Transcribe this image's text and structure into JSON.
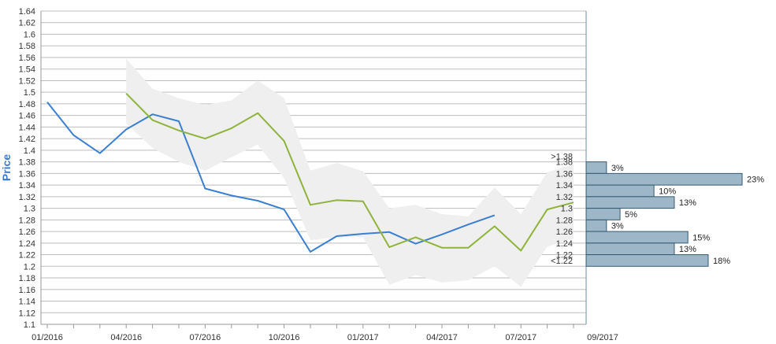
{
  "colors": {
    "blue_series": "#3a7fd0",
    "green_series": "#8fb43c",
    "band": "#efefef",
    "grid": "#bdbdbd",
    "bar_fill": "#9db7c8",
    "bar_stroke": "#345a70"
  },
  "chart_data": {
    "type": "line",
    "xlabel": "",
    "ylabel": "Price",
    "ylim": [
      1.1,
      1.64
    ],
    "y_ticks": [
      "1.64",
      "1.62",
      "1.6",
      "1.58",
      "1.56",
      "1.54",
      "1.52",
      "1.5",
      "1.48",
      "1.46",
      "1.44",
      "1.42",
      "1.4",
      "1.38",
      "1.36",
      "1.34",
      "1.32",
      "1.3",
      "1.28",
      "1.26",
      "1.24",
      "1.22",
      "1.2",
      "1.18",
      "1.16",
      "1.14",
      "1.12",
      "1.1"
    ],
    "x_tick_labels": [
      "01/2016",
      "04/2016",
      "07/2016",
      "10/2016",
      "01/2017",
      "04/2017",
      "07/2017",
      "09/2017"
    ],
    "grid": true,
    "series": [
      {
        "values": [
          {
            "x": "2016-01",
            "y": 1.483
          },
          {
            "x": "2016-02",
            "y": 1.426
          },
          {
            "x": "2016-03",
            "y": 1.395
          },
          {
            "x": "2016-04",
            "y": 1.436
          },
          {
            "x": "2016-05",
            "y": 1.462
          },
          {
            "x": "2016-06",
            "y": 1.45
          },
          {
            "x": "2016-07",
            "y": 1.334
          },
          {
            "x": "2016-08",
            "y": 1.322
          },
          {
            "x": "2016-09",
            "y": 1.313
          },
          {
            "x": "2016-10",
            "y": 1.298
          },
          {
            "x": "2016-11",
            "y": 1.225
          },
          {
            "x": "2016-12",
            "y": 1.252
          },
          {
            "x": "2017-01",
            "y": 1.256
          },
          {
            "x": "2017-02",
            "y": 1.259
          },
          {
            "x": "2017-03",
            "y": 1.239
          },
          {
            "x": "2017-04",
            "y": 1.255
          },
          {
            "x": "2017-05",
            "y": 1.272
          },
          {
            "x": "2017-06",
            "y": 1.288
          }
        ]
      },
      {
        "values": [
          {
            "x": "2016-04",
            "y": 1.498
          },
          {
            "x": "2016-05",
            "y": 1.452
          },
          {
            "x": "2016-06",
            "y": 1.434
          },
          {
            "x": "2016-07",
            "y": 1.42
          },
          {
            "x": "2016-08",
            "y": 1.438
          },
          {
            "x": "2016-09",
            "y": 1.464
          },
          {
            "x": "2016-10",
            "y": 1.416
          },
          {
            "x": "2016-11",
            "y": 1.306
          },
          {
            "x": "2016-12",
            "y": 1.314
          },
          {
            "x": "2017-01",
            "y": 1.312
          },
          {
            "x": "2017-02",
            "y": 1.233
          },
          {
            "x": "2017-03",
            "y": 1.25
          },
          {
            "x": "2017-04",
            "y": 1.232
          },
          {
            "x": "2017-05",
            "y": 1.232
          },
          {
            "x": "2017-06",
            "y": 1.269
          },
          {
            "x": "2017-07",
            "y": 1.227
          },
          {
            "x": "2017-08",
            "y": 1.298
          },
          {
            "x": "2017-09",
            "y": 1.31
          }
        ]
      }
    ],
    "band": [
      {
        "x": "2016-04",
        "low": 1.446,
        "high": 1.558
      },
      {
        "x": "2016-05",
        "low": 1.404,
        "high": 1.506
      },
      {
        "x": "2016-06",
        "low": 1.38,
        "high": 1.49
      },
      {
        "x": "2016-07",
        "low": 1.365,
        "high": 1.478
      },
      {
        "x": "2016-08",
        "low": 1.388,
        "high": 1.486
      },
      {
        "x": "2016-09",
        "low": 1.41,
        "high": 1.52
      },
      {
        "x": "2016-10",
        "low": 1.352,
        "high": 1.49
      },
      {
        "x": "2016-11",
        "low": 1.245,
        "high": 1.365
      },
      {
        "x": "2016-12",
        "low": 1.25,
        "high": 1.378
      },
      {
        "x": "2017-01",
        "low": 1.25,
        "high": 1.364
      },
      {
        "x": "2017-02",
        "low": 1.168,
        "high": 1.3
      },
      {
        "x": "2017-03",
        "low": 1.185,
        "high": 1.306
      },
      {
        "x": "2017-04",
        "low": 1.172,
        "high": 1.29
      },
      {
        "x": "2017-05",
        "low": 1.176,
        "high": 1.286
      },
      {
        "x": "2017-06",
        "low": 1.2,
        "high": 1.336
      },
      {
        "x": "2017-07",
        "low": 1.165,
        "high": 1.29
      },
      {
        "x": "2017-08",
        "low": 1.234,
        "high": 1.362
      },
      {
        "x": "2017-09",
        "low": 1.248,
        "high": 1.376
      }
    ],
    "distribution": {
      "labels": [
        ">1.38",
        "1.38",
        "1.36",
        "1.34",
        "1.32",
        "1.3",
        "1.28",
        "1.26",
        "1.24",
        "1.22",
        "<1.22"
      ],
      "bars": [
        {
          "y": 1.37,
          "pct": 3,
          "label": "3%"
        },
        {
          "y": 1.35,
          "pct": 23,
          "label": "23%"
        },
        {
          "y": 1.33,
          "pct": 10,
          "label": "10%"
        },
        {
          "y": 1.31,
          "pct": 13,
          "label": "13%"
        },
        {
          "y": 1.29,
          "pct": 5,
          "label": "5%"
        },
        {
          "y": 1.27,
          "pct": 3,
          "label": "3%"
        },
        {
          "y": 1.25,
          "pct": 15,
          "label": "15%"
        },
        {
          "y": 1.23,
          "pct": 13,
          "label": "13%"
        },
        {
          "y": 1.21,
          "pct": 18,
          "label": "18%"
        }
      ]
    }
  }
}
